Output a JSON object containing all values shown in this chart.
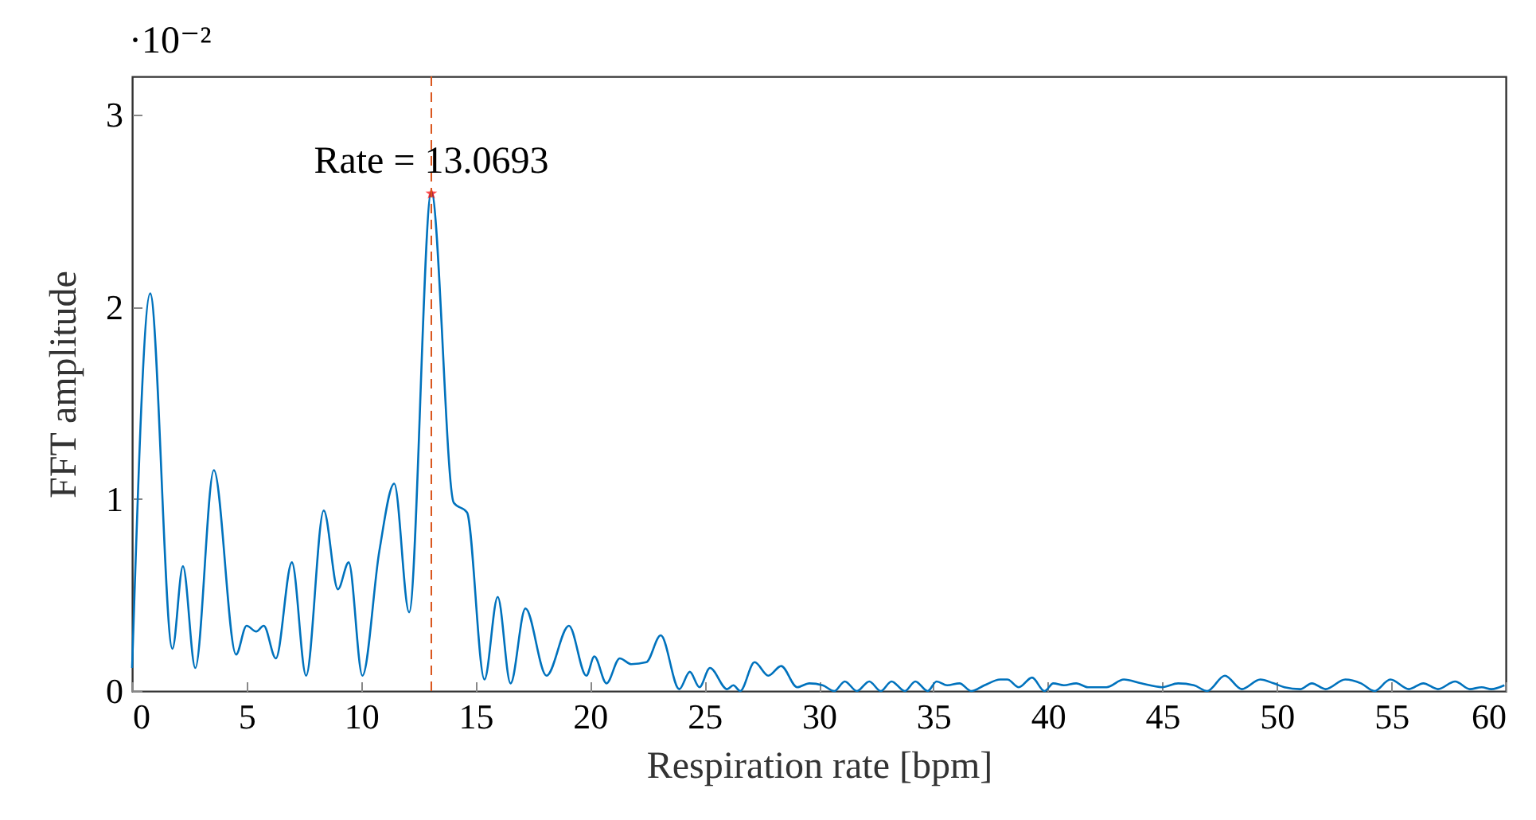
{
  "chart_data": {
    "type": "line",
    "xlabel": "Respiration rate [bpm]",
    "ylabel": "FFT amplitude",
    "xlim": [
      0,
      60
    ],
    "xticks": [
      0,
      5,
      10,
      15,
      20,
      25,
      30,
      35,
      40,
      45,
      50,
      55,
      60
    ],
    "ylim": [
      0,
      3.2
    ],
    "yticks": [
      0,
      1,
      2,
      3
    ],
    "grid": false,
    "marker": "none",
    "line_style": "solid",
    "annotations": [
      "·10⁻²",
      {
        "text": "Rate = 13.0693",
        "x": 13.0693,
        "y": 2.59
      }
    ],
    "ref_lines": [
      {
        "axis": "x",
        "value": 13.0693,
        "color": "#d95319",
        "line_style": "dashed"
      }
    ],
    "series": [
      {
        "color": "#0072bd",
        "x": [
          0,
          0.79,
          1.76,
          2.22,
          2.76,
          3.57,
          4.54,
          5.0,
          5.42,
          5.75,
          6.28,
          6.98,
          7.6,
          8.37,
          8.99,
          9.46,
          10.06,
          10.8,
          11.45,
          12.1,
          13.07,
          14.05,
          14.63,
          15.39,
          15.97,
          16.53,
          17.18,
          18.1,
          19.08,
          19.84,
          20.19,
          20.72,
          21.3,
          21.81,
          22.46,
          23.09,
          23.9,
          24.36,
          24.78,
          25.24,
          25.99,
          26.26,
          26.56,
          27.19,
          27.79,
          28.35,
          29.05,
          29.58,
          30.16,
          30.67,
          31.13,
          31.66,
          32.2,
          32.7,
          33.17,
          33.75,
          34.21,
          34.75,
          35.14,
          35.6,
          36.14,
          36.65,
          37.23,
          37.92,
          38.23,
          38.73,
          39.31,
          39.85,
          40.24,
          40.7,
          41.24,
          41.75,
          42.56,
          43.32,
          44.07,
          44.99,
          45.69,
          46.38,
          46.96,
          47.73,
          48.47,
          49.28,
          49.86,
          50.33,
          51.02,
          51.53,
          52.13,
          52.99,
          53.68,
          54.26,
          54.96,
          55.77,
          56.4,
          57.04,
          57.79,
          58.43,
          58.95,
          59.37,
          59.94
        ],
        "values": [
          0.12,
          2.07,
          0.22,
          0.65,
          0.12,
          1.15,
          0.19,
          0.34,
          0.31,
          0.34,
          0.17,
          0.67,
          0.08,
          0.94,
          0.53,
          0.67,
          0.08,
          0.73,
          1.08,
          0.41,
          2.6,
          0.98,
          0.93,
          0.06,
          0.49,
          0.04,
          0.43,
          0.08,
          0.34,
          0.08,
          0.18,
          0.04,
          0.17,
          0.14,
          0.15,
          0.29,
          0.01,
          0.1,
          0.02,
          0.12,
          0.01,
          0.03,
          0.0,
          0.15,
          0.08,
          0.13,
          0.02,
          0.04,
          0.03,
          0.0,
          0.05,
          0.0,
          0.05,
          0.0,
          0.05,
          0.0,
          0.05,
          0.0,
          0.05,
          0.03,
          0.04,
          0.0,
          0.03,
          0.06,
          0.06,
          0.02,
          0.07,
          0.0,
          0.04,
          0.03,
          0.04,
          0.02,
          0.02,
          0.06,
          0.04,
          0.02,
          0.04,
          0.03,
          0.0,
          0.08,
          0.01,
          0.06,
          0.04,
          0.02,
          0.01,
          0.04,
          0.01,
          0.06,
          0.04,
          0.0,
          0.06,
          0.01,
          0.04,
          0.01,
          0.05,
          0.01,
          0.02,
          0.01,
          0.03
        ]
      },
      {
        "type": "scatter",
        "marker": "star",
        "color": "#ff0000",
        "x": [
          13.0693
        ],
        "values": [
          2.59
        ]
      }
    ]
  }
}
